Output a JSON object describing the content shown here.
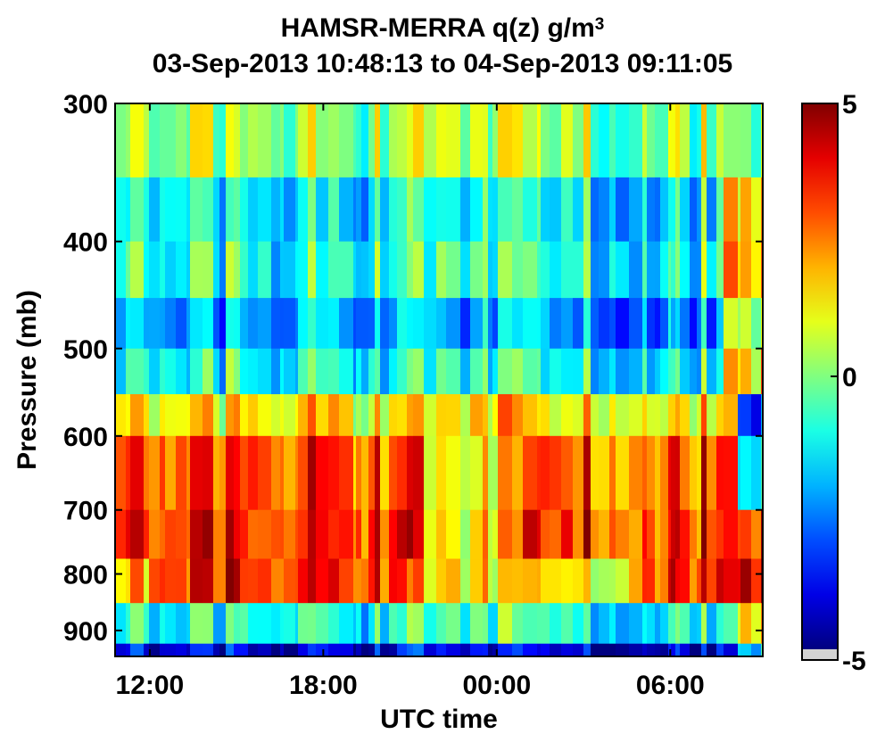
{
  "chart_data": {
    "type": "heatmap",
    "title": "HAMSR-MERRA q(z) g/m",
    "title_superscript": "3",
    "subtitle": "03-Sep-2013 10:48:13 to 04-Sep-2013 09:11:05",
    "xlabel": "UTC time",
    "ylabel": "Pressure (mb)",
    "x_ticks": [
      "12:00",
      "18:00",
      "00:00",
      "06:00"
    ],
    "x_range_hours": [
      10.8,
      33.2
    ],
    "x_tick_hours": [
      12,
      18,
      24,
      30
    ],
    "y_ticks": [
      300,
      400,
      500,
      600,
      700,
      800,
      900
    ],
    "y_range_mb": [
      300,
      950
    ],
    "y_scale": "log",
    "colorbar": {
      "min": -5,
      "max": 5,
      "ticks": [
        "5",
        "0",
        "-5"
      ],
      "colormap": "jet",
      "nodata_color": "#d3d3d3"
    },
    "levels_mb": [
      300,
      350,
      400,
      450,
      500,
      550,
      600,
      700,
      775,
      850,
      925,
      950
    ],
    "level_means": [
      0.3,
      -1.2,
      -0.8,
      -2.0,
      -1.0,
      1.5,
      3.2,
      3.5,
      1.5,
      -0.8,
      -4.0
    ],
    "grid": false
  }
}
